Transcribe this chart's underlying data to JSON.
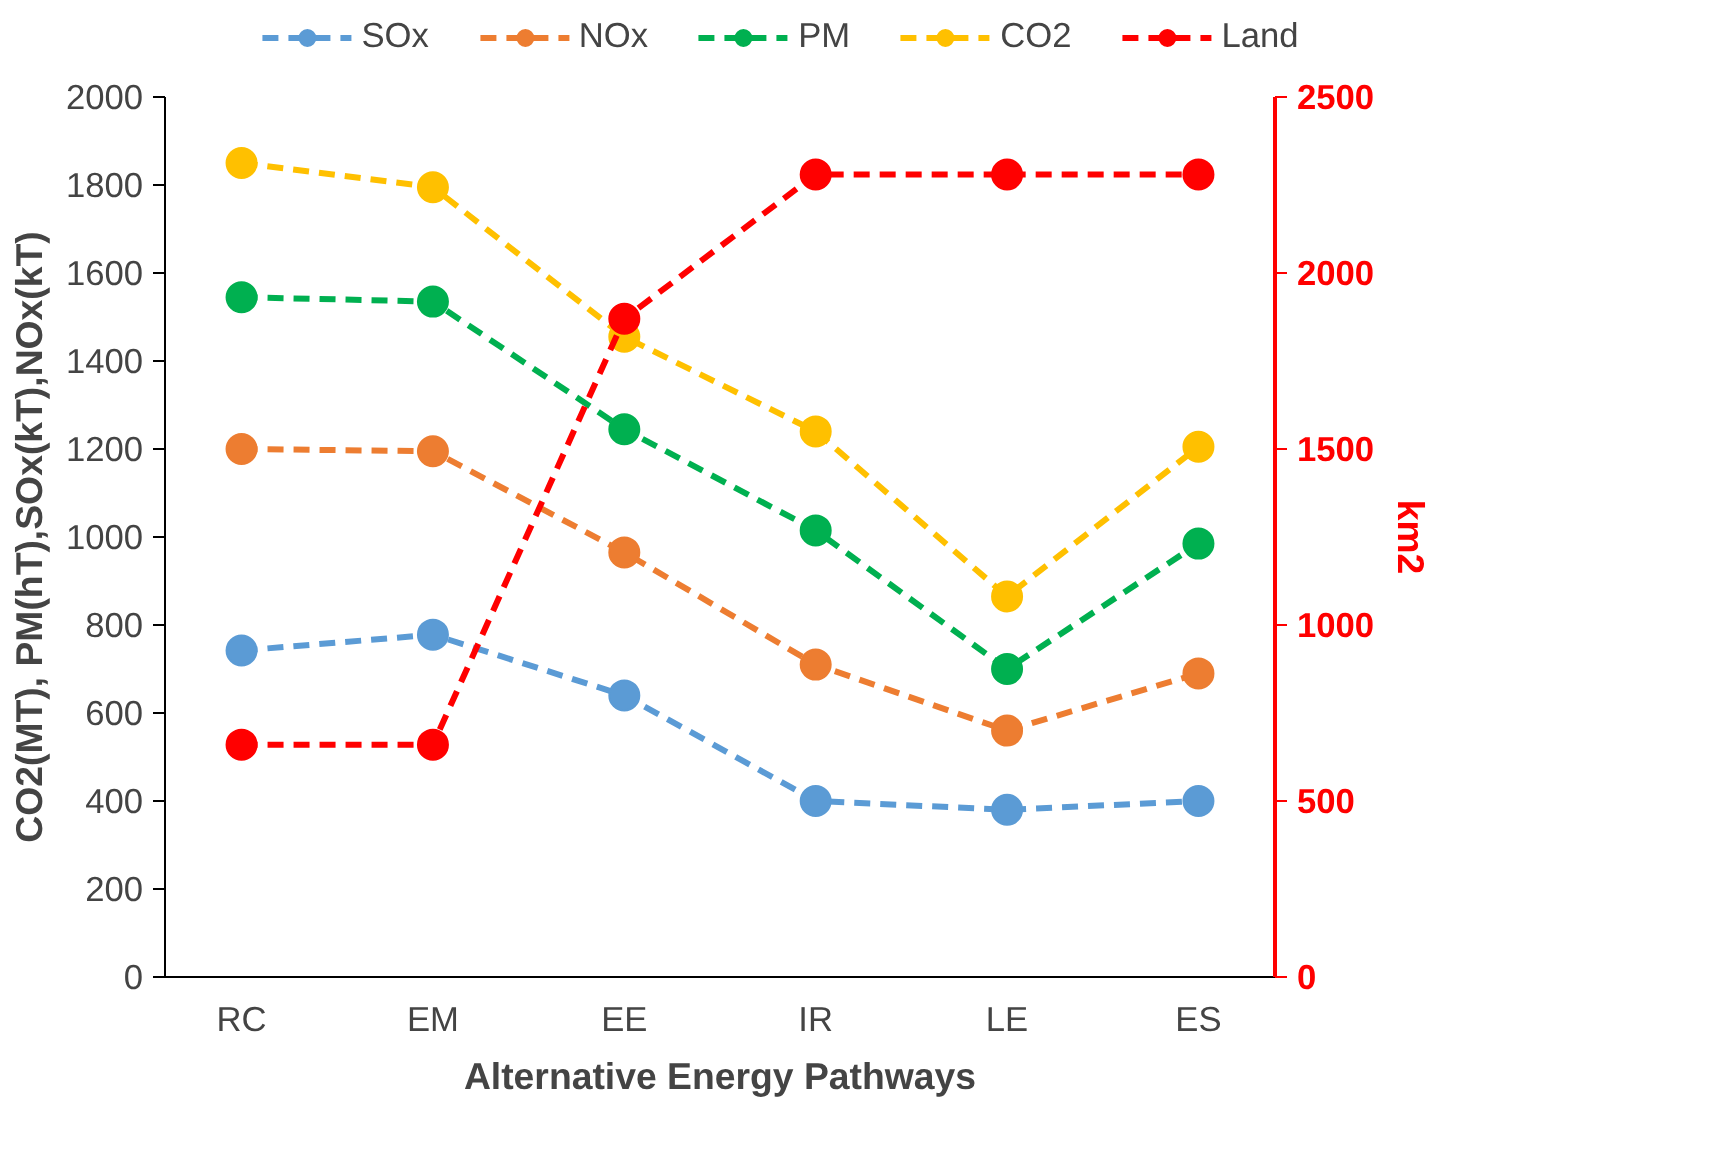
{
  "chart_data": {
    "type": "line",
    "xlabel": "Alternative Energy Pathways",
    "ylabel": "CO2(MT), PM(hT),SOx(kT),NOx(kT)",
    "y2label": "km2",
    "categories": [
      "RC",
      "EM",
      "EE",
      "IR",
      "LE",
      "ES"
    ],
    "series": [
      {
        "name": "SOx",
        "color": "#5b9bd5",
        "values": [
          742,
          778,
          640,
          400,
          380,
          400
        ]
      },
      {
        "name": "NOx",
        "color": "#ed7d31",
        "values": [
          1200,
          1195,
          965,
          710,
          560,
          690
        ]
      },
      {
        "name": "PM",
        "color": "#00b050",
        "values": [
          1545,
          1535,
          1245,
          1015,
          700,
          985
        ]
      },
      {
        "name": "CO2",
        "color": "#ffc000",
        "values": [
          1850,
          1795,
          1455,
          1240,
          865,
          1205
        ]
      },
      {
        "name": "Land",
        "color": "#ff0000",
        "axis": "y2",
        "values": [
          660,
          660,
          1870,
          2280,
          2280,
          2280
        ]
      }
    ],
    "ylim": [
      0,
      2000
    ],
    "yticks": [
      0,
      200,
      400,
      600,
      800,
      1000,
      1200,
      1400,
      1600,
      1800,
      2000
    ],
    "y2lim": [
      0,
      2500
    ],
    "y2ticks": [
      0,
      500,
      1000,
      1500,
      2000,
      2500
    ],
    "grid": false,
    "legend": "top",
    "marker": "circle",
    "line_style": "dashed"
  }
}
